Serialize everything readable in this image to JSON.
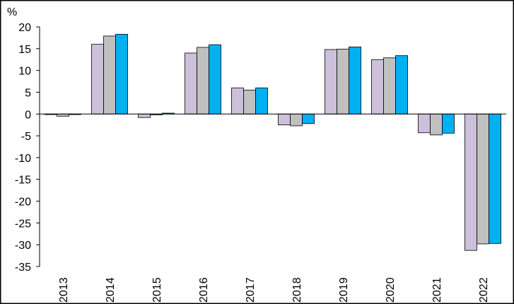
{
  "chart_data": {
    "type": "bar",
    "title": "",
    "ylabel": "%",
    "xlabel": "",
    "ylim": [
      -35,
      20
    ],
    "yticks": [
      20,
      15,
      10,
      5,
      0,
      -5,
      -10,
      -15,
      -20,
      -25,
      -30,
      -35
    ],
    "grid": false,
    "legend": "none",
    "categories": [
      "2013",
      "2014",
      "2015",
      "2016",
      "2017",
      "2018",
      "2019",
      "2020",
      "2021",
      "2022"
    ],
    "series": [
      {
        "color": "#ccc0da",
        "values": [
          -0.1,
          16.0,
          -0.8,
          14.0,
          6.0,
          -2.5,
          14.8,
          12.5,
          -4.3,
          -31.3
        ]
      },
      {
        "color": "#c0c0c0",
        "values": [
          -0.5,
          17.9,
          -0.2,
          15.3,
          5.5,
          -2.7,
          14.9,
          12.9,
          -4.8,
          -29.8
        ]
      },
      {
        "color": "#00b0f0",
        "values": [
          -0.1,
          18.3,
          0.2,
          15.9,
          6.0,
          -2.2,
          15.4,
          13.4,
          -4.4,
          -29.7
        ]
      }
    ]
  }
}
